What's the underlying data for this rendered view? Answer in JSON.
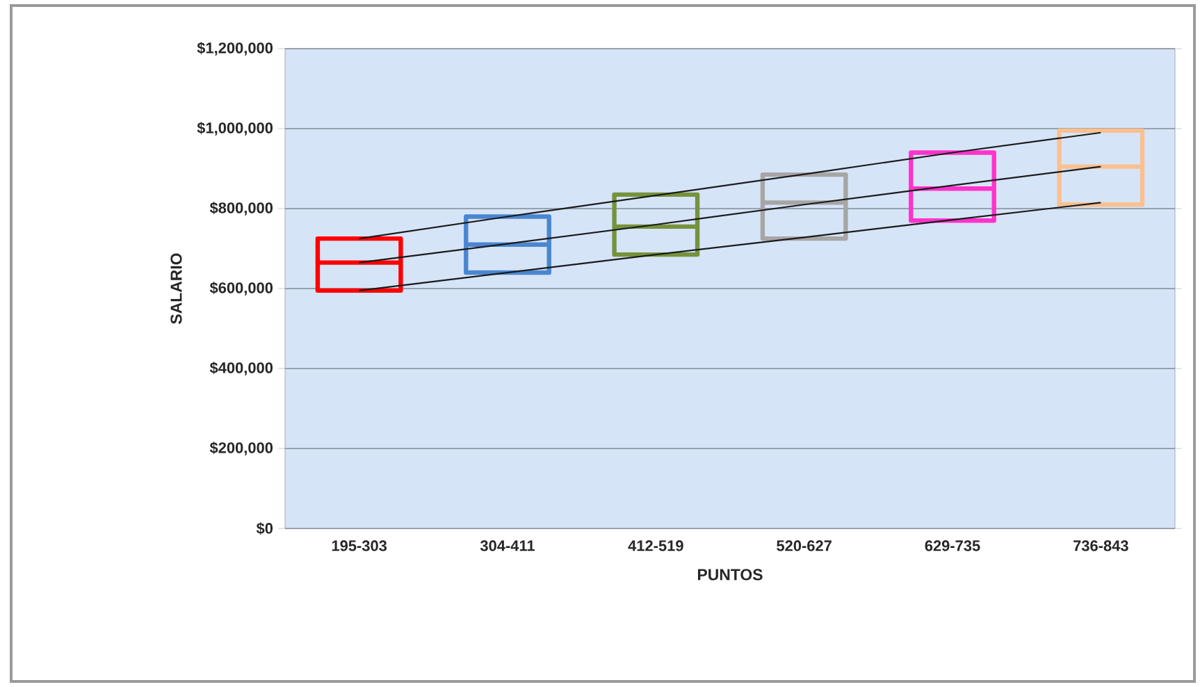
{
  "chart_data": {
    "type": "box",
    "xlabel": "PUNTOS",
    "ylabel": "SALARIO",
    "categories": [
      "195-303",
      "304-411",
      "412-519",
      "520-627",
      "629-735",
      "736-843"
    ],
    "ylim": [
      0,
      1200000
    ],
    "yticks": [
      {
        "value": 0,
        "label": "$0"
      },
      {
        "value": 200000,
        "label": "$200,000"
      },
      {
        "value": 400000,
        "label": "$400,000"
      },
      {
        "value": 600000,
        "label": "$600,000"
      },
      {
        "value": 800000,
        "label": "$800,000"
      },
      {
        "value": 1000000,
        "label": "$1,000,000"
      },
      {
        "value": 1200000,
        "label": "$1,200,000"
      }
    ],
    "grid": "y",
    "series": [
      {
        "colors": [
          "#ff0000",
          "#4a86d0",
          "#76923c",
          "#a6a6a6",
          "#ff33cc",
          "#fac08f"
        ],
        "boxes": [
          {
            "low": 595000,
            "q1": 595000,
            "median": 665000,
            "q3": 725000,
            "high": 725000
          },
          {
            "low": 640000,
            "q1": 640000,
            "median": 710000,
            "q3": 780000,
            "high": 780000
          },
          {
            "low": 685000,
            "q1": 685000,
            "median": 755000,
            "q3": 835000,
            "high": 835000
          },
          {
            "low": 725000,
            "q1": 725000,
            "median": 815000,
            "q3": 885000,
            "high": 885000
          },
          {
            "low": 770000,
            "q1": 770000,
            "median": 850000,
            "q3": 940000,
            "high": 940000
          },
          {
            "low": 810000,
            "q1": 810000,
            "median": 905000,
            "q3": 995000,
            "high": 995000
          }
        ]
      },
      {
        "type": "line",
        "color": "#1a1a1a",
        "values": [
          725000,
          780000,
          833000,
          886000,
          940000,
          990000
        ]
      },
      {
        "type": "line",
        "color": "#1a1a1a",
        "values": [
          665000,
          712000,
          760000,
          810000,
          858000,
          905000
        ]
      },
      {
        "type": "line",
        "color": "#1a1a1a",
        "values": [
          595000,
          640000,
          685000,
          728000,
          772000,
          815000
        ]
      }
    ]
  }
}
